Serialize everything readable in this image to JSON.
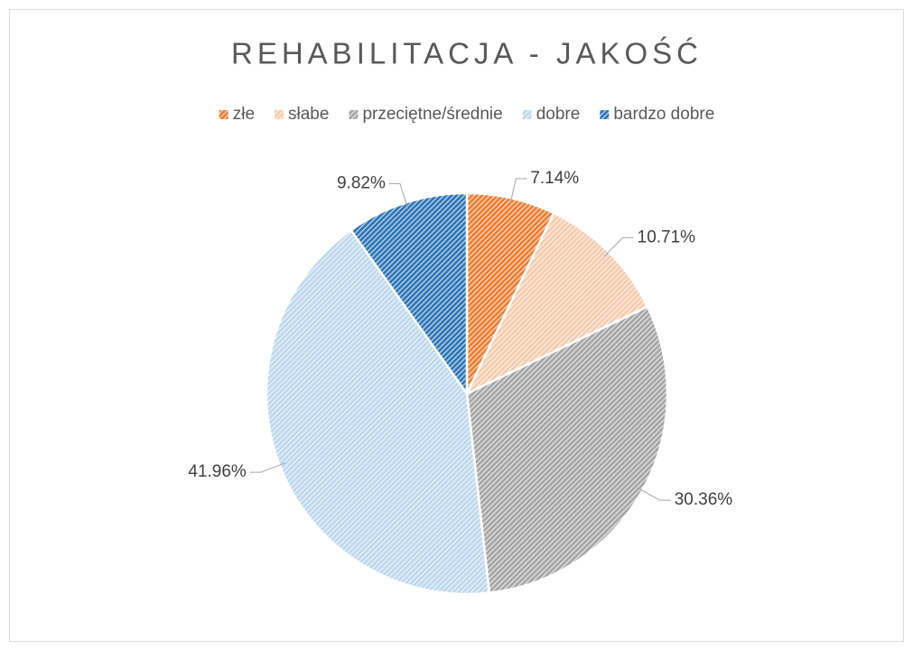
{
  "chart_data": {
    "type": "pie",
    "title": "REHABILITACJA - JAKOŚĆ",
    "categories": [
      "złe",
      "słabe",
      "przeciętne/średnie",
      "dobre",
      "bardzo dobre"
    ],
    "values": [
      7.14,
      10.71,
      30.36,
      41.96,
      9.82
    ],
    "value_labels": [
      "7.14%",
      "10.71%",
      "30.36%",
      "41.96%",
      "9.82%"
    ],
    "colors": [
      "#ED7D31",
      "#F8CBAD",
      "#A5A5A5",
      "#BDD7EE",
      "#2E75B6"
    ],
    "legend": "top"
  }
}
